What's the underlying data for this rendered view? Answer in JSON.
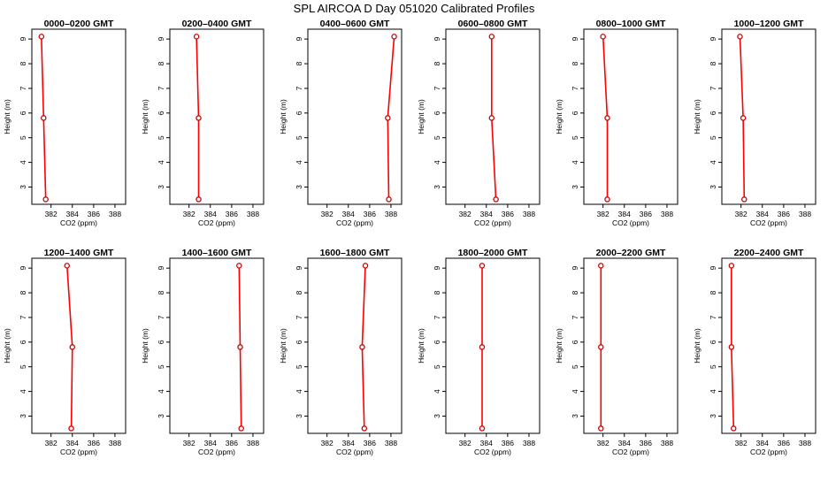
{
  "title": "SPL AIRCOA D  Day 051020  Calibrated Profiles",
  "xlabel": "CO2 (ppm)",
  "ylabel": "Height (m)",
  "xticks": [
    "382",
    "384",
    "386",
    "388"
  ],
  "yticks": [
    "3",
    "4",
    "5",
    "6",
    "7",
    "8",
    "9"
  ],
  "colors": {
    "line": "#ff0000",
    "point": "#cc0000",
    "axis": "#000000"
  },
  "chart_data": [
    {
      "type": "line",
      "title": "0000–0200 GMT",
      "xlabel": "CO2 (ppm)",
      "ylabel": "Height (m)",
      "xlim": [
        380.2,
        389.0
      ],
      "ylim": [
        2.3,
        9.4
      ],
      "x": [
        381.5,
        381.3,
        381.1
      ],
      "y": [
        2.5,
        5.8,
        9.1
      ]
    },
    {
      "type": "line",
      "title": "0200–0400 GMT",
      "xlabel": "CO2 (ppm)",
      "ylabel": "Height (m)",
      "xlim": [
        380.2,
        389.0
      ],
      "ylim": [
        2.3,
        9.4
      ],
      "x": [
        382.9,
        382.9,
        382.7
      ],
      "y": [
        2.5,
        5.8,
        9.1
      ]
    },
    {
      "type": "line",
      "title": "0400–0600 GMT",
      "xlabel": "CO2 (ppm)",
      "ylabel": "Height (m)",
      "xlim": [
        380.2,
        389.0
      ],
      "ylim": [
        2.3,
        9.4
      ],
      "x": [
        387.8,
        387.7,
        388.3
      ],
      "y": [
        2.5,
        5.8,
        9.1
      ]
    },
    {
      "type": "line",
      "title": "0600–0800 GMT",
      "xlabel": "CO2 (ppm)",
      "ylabel": "Height (m)",
      "xlim": [
        380.2,
        389.0
      ],
      "ylim": [
        2.3,
        9.4
      ],
      "x": [
        384.9,
        384.5,
        384.5
      ],
      "y": [
        2.5,
        5.8,
        9.1
      ]
    },
    {
      "type": "line",
      "title": "0800–1000 GMT",
      "xlabel": "CO2 (ppm)",
      "ylabel": "Height (m)",
      "xlim": [
        380.2,
        389.0
      ],
      "ylim": [
        2.3,
        9.4
      ],
      "x": [
        382.4,
        382.4,
        382.0
      ],
      "y": [
        2.5,
        5.8,
        9.1
      ]
    },
    {
      "type": "line",
      "title": "1000–1200 GMT",
      "xlabel": "CO2 (ppm)",
      "ylabel": "Height (m)",
      "xlim": [
        380.2,
        389.0
      ],
      "ylim": [
        2.3,
        9.4
      ],
      "x": [
        382.3,
        382.2,
        381.9
      ],
      "y": [
        2.5,
        5.8,
        9.1
      ]
    },
    {
      "type": "line",
      "title": "1200–1400 GMT",
      "xlabel": "CO2 (ppm)",
      "ylabel": "Height (m)",
      "xlim": [
        380.2,
        389.0
      ],
      "ylim": [
        2.3,
        9.4
      ],
      "x": [
        383.9,
        384.0,
        383.5
      ],
      "y": [
        2.5,
        5.8,
        9.1
      ]
    },
    {
      "type": "line",
      "title": "1400–1600 GMT",
      "xlabel": "CO2 (ppm)",
      "ylabel": "Height (m)",
      "xlim": [
        380.2,
        389.0
      ],
      "ylim": [
        2.3,
        9.4
      ],
      "x": [
        386.9,
        386.8,
        386.7
      ],
      "y": [
        2.5,
        5.8,
        9.1
      ]
    },
    {
      "type": "line",
      "title": "1600–1800 GMT",
      "xlabel": "CO2 (ppm)",
      "ylabel": "Height (m)",
      "xlim": [
        380.2,
        389.0
      ],
      "ylim": [
        2.3,
        9.4
      ],
      "x": [
        385.5,
        385.3,
        385.6
      ],
      "y": [
        2.5,
        5.8,
        9.1
      ]
    },
    {
      "type": "line",
      "title": "1800–2000 GMT",
      "xlabel": "CO2 (ppm)",
      "ylabel": "Height (m)",
      "xlim": [
        380.2,
        389.0
      ],
      "ylim": [
        2.3,
        9.4
      ],
      "x": [
        383.6,
        383.6,
        383.6
      ],
      "y": [
        2.5,
        5.8,
        9.1
      ]
    },
    {
      "type": "line",
      "title": "2000–2200 GMT",
      "xlabel": "CO2 (ppm)",
      "ylabel": "Height (m)",
      "xlim": [
        380.2,
        389.0
      ],
      "ylim": [
        2.3,
        9.4
      ],
      "x": [
        381.8,
        381.8,
        381.8
      ],
      "y": [
        2.5,
        5.8,
        9.1
      ]
    },
    {
      "type": "line",
      "title": "2200–2400 GMT",
      "xlabel": "CO2 (ppm)",
      "ylabel": "Height (m)",
      "xlim": [
        380.2,
        389.0
      ],
      "ylim": [
        2.3,
        9.4
      ],
      "x": [
        381.3,
        381.1,
        381.1
      ],
      "y": [
        2.5,
        5.8,
        9.1
      ]
    }
  ]
}
